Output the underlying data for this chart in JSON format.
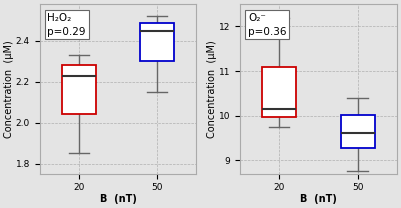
{
  "left": {
    "title": "H₂O₂",
    "pval": "p=0.29",
    "ylabel": "Concentration  (μM)",
    "xlabel": "B  (nT)",
    "xticks": [
      20,
      50
    ],
    "ylim": [
      1.75,
      2.58
    ],
    "yticks": [
      1.8,
      2.0,
      2.2,
      2.4
    ],
    "box20": {
      "whislo": 1.85,
      "q1": 2.04,
      "med": 2.23,
      "q3": 2.28,
      "whishi": 2.33
    },
    "box50": {
      "whislo": 2.15,
      "q1": 2.3,
      "med": 2.45,
      "q3": 2.49,
      "whishi": 2.52
    },
    "color20": "#cc0000",
    "color50": "#0000cc"
  },
  "right": {
    "title": "O₂⁻",
    "pval": "p=0.36",
    "ylabel": "Concentration  (μM)",
    "xlabel": "B  (nT)",
    "xticks": [
      20,
      50
    ],
    "ylim": [
      8.7,
      12.5
    ],
    "yticks": [
      9,
      10,
      11,
      12
    ],
    "box20": {
      "whislo": 9.75,
      "q1": 9.98,
      "med": 10.15,
      "q3": 11.1,
      "whishi": 12.2
    },
    "box50": {
      "whislo": 8.75,
      "q1": 9.28,
      "med": 9.62,
      "q3": 10.02,
      "whishi": 10.4
    },
    "color20": "#cc0000",
    "color50": "#0000cc"
  },
  "bg_color": "#e4e4e4",
  "fontsize_label": 7.0,
  "fontsize_tick": 6.5,
  "fontsize_annot": 7.5
}
